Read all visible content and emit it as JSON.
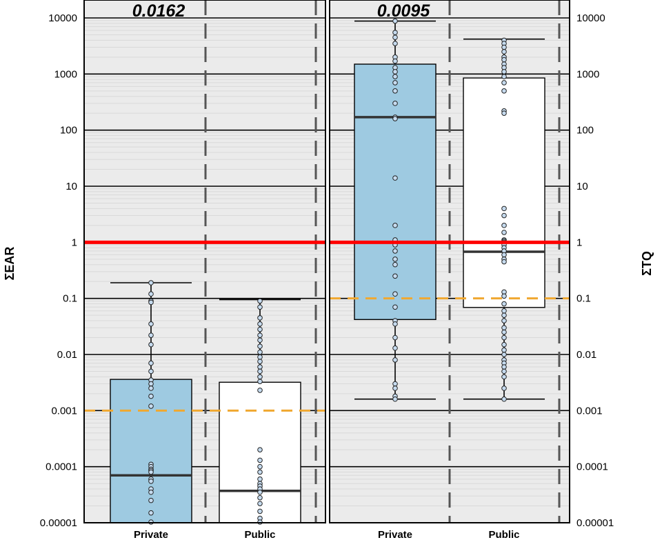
{
  "chart_data": {
    "type": "boxplot",
    "y_scale": "log10",
    "ylim": [
      1e-05,
      10000
    ],
    "y_ticks": [
      "0.00001",
      "0.0001",
      "0.001",
      "0.01",
      "0.1",
      "1",
      "10",
      "100",
      "1000",
      "10000"
    ],
    "left_axis_label": "ΣEAR",
    "right_axis_label": "ΣTQ",
    "categories": [
      "Private",
      "Public"
    ],
    "colors": {
      "Private": "#9ecae1",
      "Public": "#ffffff",
      "panel_bg": "#ebebeb",
      "threshold_line": "#ff0000",
      "reference_line": "#f0a830"
    },
    "threshold_line_value": 1,
    "panels": [
      {
        "title": "0.0162",
        "reference_line_value": 0.001,
        "boxes": [
          {
            "category": "Private",
            "whisker_low": 1e-05,
            "q1": 1e-05,
            "median": 7e-05,
            "q3": 0.0036,
            "whisker_high": 0.19,
            "points": [
              0.19,
              0.12,
              0.09,
              0.085,
              0.035,
              0.022,
              0.015,
              0.007,
              0.005,
              0.0035,
              0.003,
              0.0025,
              0.0018,
              0.0012,
              0.00011,
              0.0001,
              9e-05,
              8.5e-05,
              8e-05,
              6e-05,
              5.5e-05,
              4e-05,
              3.5e-05,
              2.5e-05,
              1.5e-05,
              1e-05
            ]
          },
          {
            "category": "Public",
            "whisker_low": 1e-05,
            "q1": 1e-05,
            "median": 3.7e-05,
            "q3": 0.0032,
            "whisker_high": 0.095,
            "points": [
              0.09,
              0.07,
              0.045,
              0.035,
              0.028,
              0.022,
              0.018,
              0.014,
              0.011,
              0.009,
              0.0075,
              0.006,
              0.005,
              0.004,
              0.0033,
              0.0023,
              0.0002,
              0.00013,
              0.0001,
              8e-05,
              6e-05,
              5e-05,
              4.5e-05,
              4e-05,
              3.5e-05,
              2.8e-05,
              2.2e-05,
              1.6e-05,
              1.2e-05,
              1e-05
            ]
          }
        ]
      },
      {
        "title": "0.0095",
        "reference_line_value": 0.1,
        "boxes": [
          {
            "category": "Private",
            "whisker_low": 0.0016,
            "q1": 0.042,
            "median": 170,
            "q3": 1500,
            "whisker_high": 8800,
            "points": [
              8800,
              5500,
              4500,
              3500,
              2000,
              1700,
              1300,
              1100,
              900,
              700,
              500,
              300,
              170,
              160,
              14,
              2,
              1.1,
              0.9,
              0.7,
              0.5,
              0.4,
              0.25,
              0.12,
              0.07,
              0.04,
              0.035,
              0.02,
              0.013,
              0.008,
              0.003,
              0.0025,
              0.0018,
              0.0016
            ]
          },
          {
            "category": "Public",
            "whisker_low": 0.0016,
            "q1": 0.069,
            "median": 0.68,
            "q3": 850,
            "whisker_high": 4200,
            "points": [
              4000,
              3500,
              3000,
              2500,
              2000,
              1800,
              1500,
              1300,
              1100,
              900,
              700,
              500,
              220,
              200,
              4,
              3,
              2,
              1.5,
              1.1,
              1.05,
              1,
              0.9,
              0.8,
              0.7,
              0.6,
              0.5,
              0.45,
              0.13,
              0.11,
              0.08,
              0.06,
              0.05,
              0.04,
              0.03,
              0.025,
              0.02,
              0.015,
              0.012,
              0.01,
              0.008,
              0.007,
              0.006,
              0.005,
              0.004,
              0.0025,
              0.0016
            ]
          }
        ]
      }
    ]
  }
}
